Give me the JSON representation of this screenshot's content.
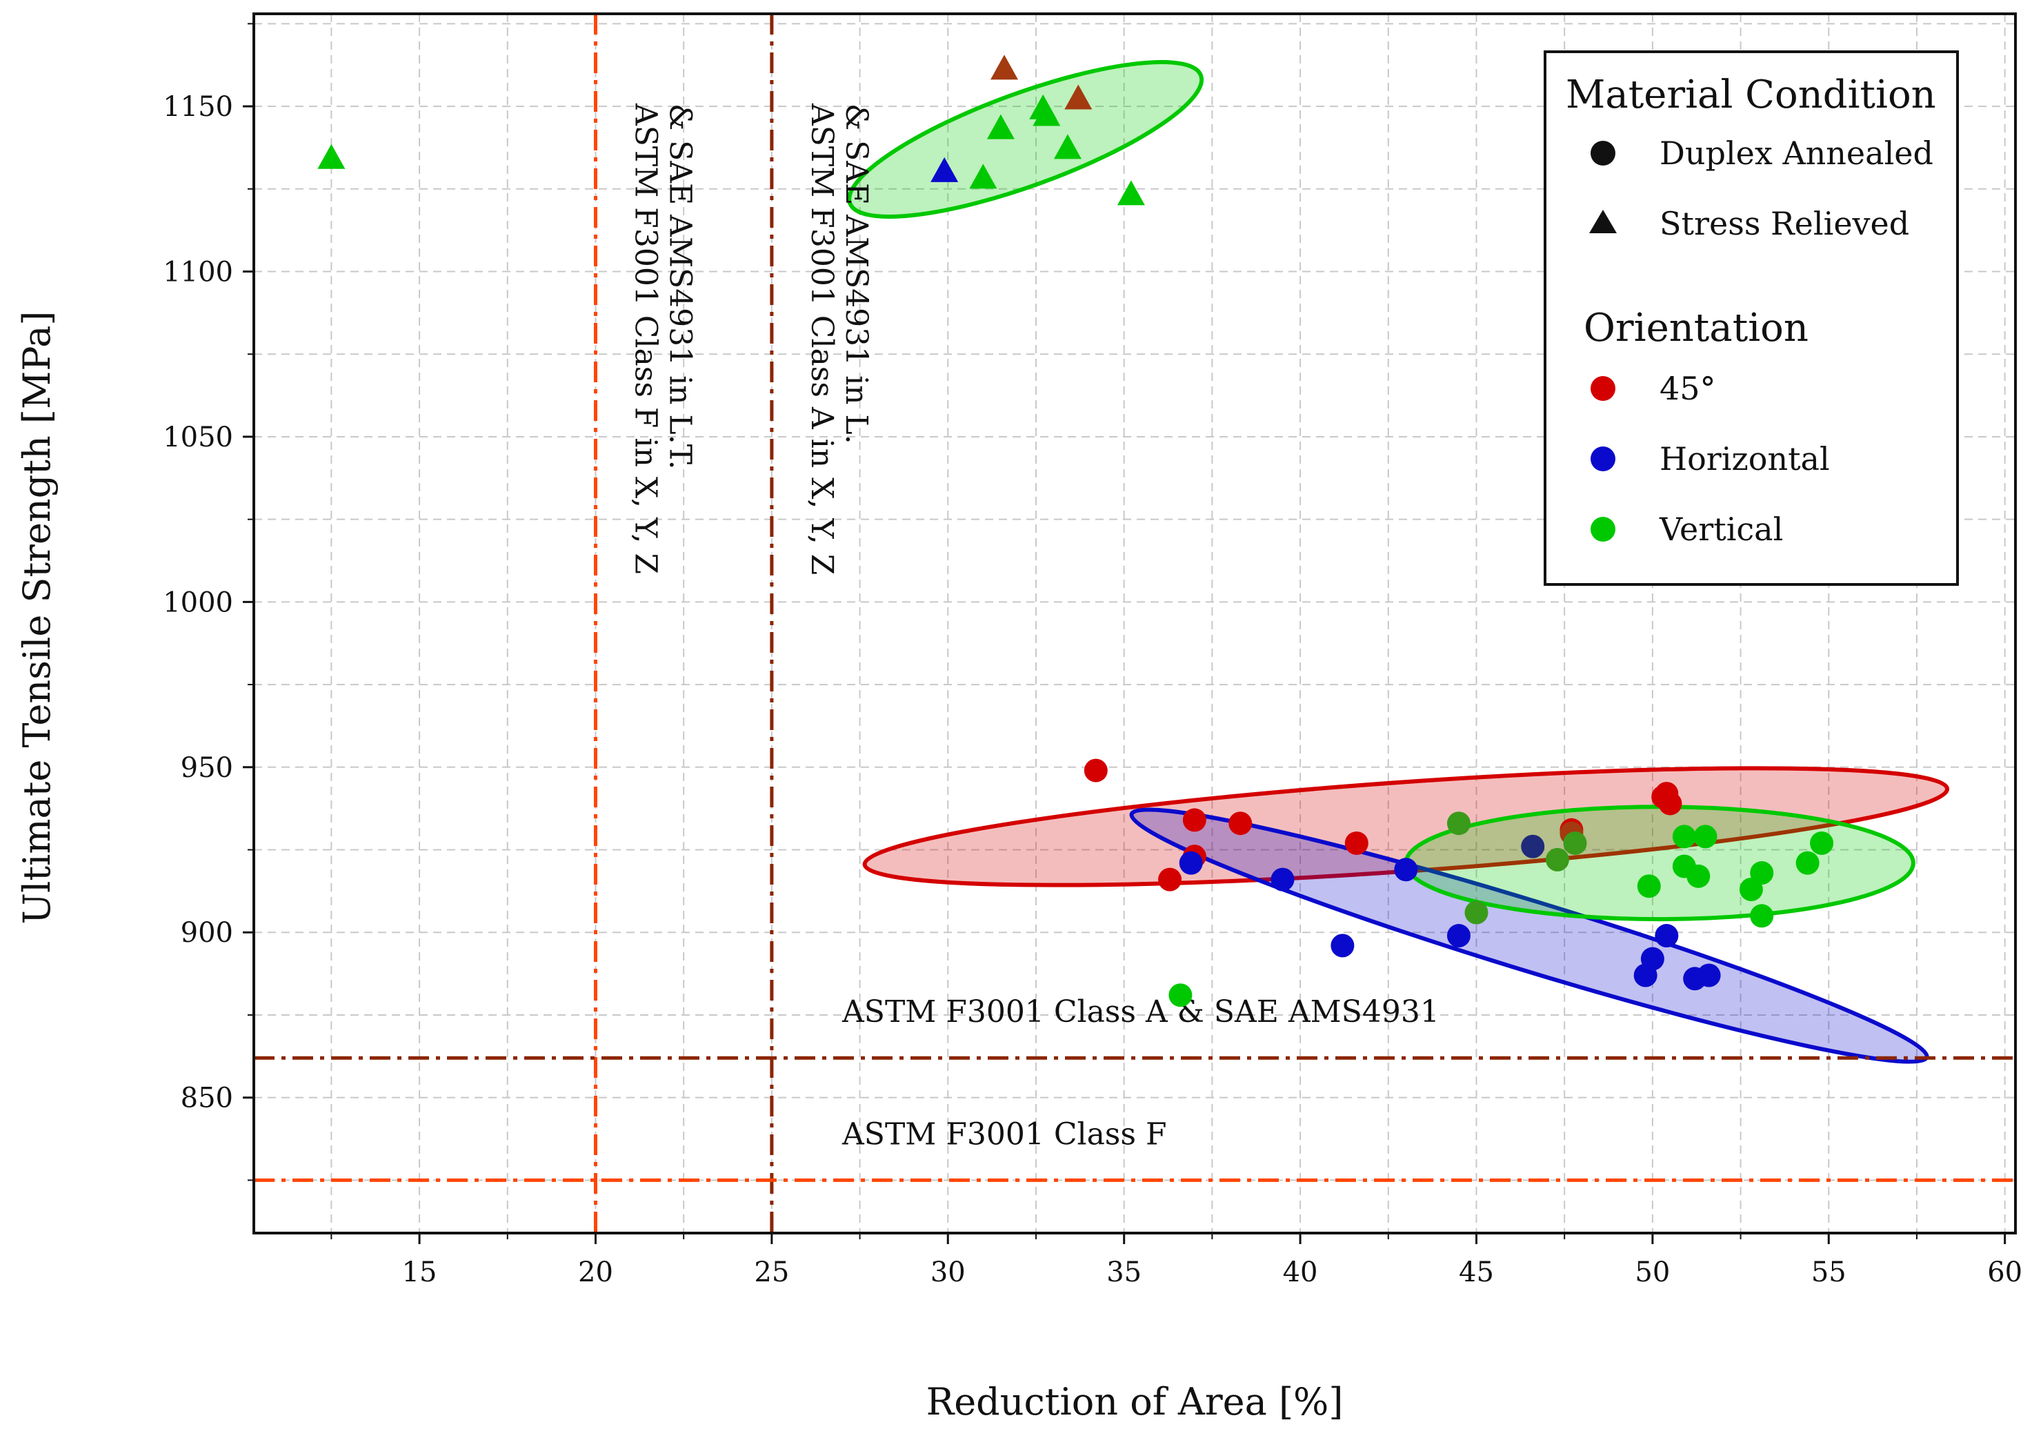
{
  "chart_data": {
    "type": "scatter",
    "xlabel": "Reduction of Area [%]",
    "ylabel": "Ultimate Tensile Strength [MPa]",
    "xlim": [
      10.3,
      60.3
    ],
    "ylim": [
      809,
      1178
    ],
    "x_ticks": [
      15,
      20,
      25,
      30,
      35,
      40,
      45,
      50,
      55,
      60
    ],
    "y_ticks": [
      850,
      900,
      950,
      1000,
      1050,
      1100,
      1150
    ],
    "x_tick_labels": [
      "15",
      "20",
      "25",
      "30",
      "35",
      "40",
      "45",
      "50",
      "55",
      "60"
    ],
    "y_tick_labels": [
      "850",
      "900",
      "950",
      "1000",
      "1050",
      "1100",
      "1150"
    ],
    "grid": true,
    "colors": {
      "45deg": "#d40000",
      "horizontal": "#0a0acc",
      "vertical": "#00c800",
      "red_brown": "#a33a10",
      "dark_green": "#3a9a1a",
      "navy": "#1f2a7a",
      "class_a_line": "#8b2500",
      "class_f_line": "#ff4500"
    },
    "reference_lines": {
      "vertical": [
        {
          "x": 20,
          "color_key": "class_f_line",
          "label": "ASTM F3001 Class F in X, Y, Z & SAE AMS4931 in L.T."
        },
        {
          "x": 25,
          "color_key": "class_a_line",
          "label": "ASTM F3001 Class A in X, Y, Z & SAE AMS4931 in L."
        }
      ],
      "horizontal": [
        {
          "y": 862,
          "color_key": "class_a_line",
          "label": "ASTM F3001 Class A & SAE AMS4931"
        },
        {
          "y": 825,
          "color_key": "class_f_line",
          "label": "ASTM F3001 Class F"
        }
      ]
    },
    "series": [
      {
        "name": "45° Duplex Annealed",
        "marker": "circle",
        "color_key": "45deg",
        "points": [
          [
            34.2,
            949
          ],
          [
            37.0,
            934
          ],
          [
            38.3,
            933
          ],
          [
            37.0,
            923
          ],
          [
            36.3,
            916
          ],
          [
            41.6,
            927
          ],
          [
            50.4,
            942
          ],
          [
            50.5,
            939
          ],
          [
            47.7,
            931
          ],
          [
            50.3,
            941
          ]
        ]
      },
      {
        "name": "45° overlap Duplex Annealed",
        "marker": "circle",
        "color_key": "red_brown",
        "points": [
          [
            47.7,
            930
          ]
        ]
      },
      {
        "name": "Horizontal Duplex Annealed",
        "marker": "circle",
        "color_key": "horizontal",
        "points": [
          [
            36.9,
            921
          ],
          [
            39.5,
            916
          ],
          [
            41.2,
            896
          ],
          [
            43.0,
            919
          ],
          [
            44.5,
            899
          ],
          [
            50.4,
            899
          ],
          [
            50.0,
            892
          ],
          [
            49.8,
            887
          ],
          [
            51.2,
            886
          ],
          [
            51.6,
            887
          ]
        ]
      },
      {
        "name": "Horizontal overlap Duplex Annealed",
        "marker": "circle",
        "color_key": "navy",
        "points": [
          [
            46.6,
            926
          ]
        ]
      },
      {
        "name": "Vertical Duplex Annealed",
        "marker": "circle",
        "color_key": "vertical",
        "points": [
          [
            36.6,
            881
          ],
          [
            49.9,
            914
          ],
          [
            50.9,
            929
          ],
          [
            51.3,
            917
          ],
          [
            51.5,
            929
          ],
          [
            50.9,
            920
          ],
          [
            52.8,
            913
          ],
          [
            53.1,
            918
          ],
          [
            53.1,
            905
          ],
          [
            54.4,
            921
          ],
          [
            54.8,
            927
          ]
        ]
      },
      {
        "name": "Vertical overlap Duplex Annealed",
        "marker": "circle",
        "color_key": "dark_green",
        "points": [
          [
            44.5,
            933
          ],
          [
            45.0,
            906
          ],
          [
            47.3,
            922
          ],
          [
            47.8,
            927
          ]
        ]
      },
      {
        "name": "Vertical Stress Relieved",
        "marker": "triangle",
        "color_key": "vertical",
        "points": [
          [
            12.5,
            1134
          ],
          [
            31.0,
            1128
          ],
          [
            31.5,
            1143
          ],
          [
            32.7,
            1149
          ],
          [
            32.8,
            1147
          ],
          [
            33.4,
            1137
          ],
          [
            35.2,
            1123
          ]
        ]
      },
      {
        "name": "45° Stress Relieved",
        "marker": "triangle",
        "color_key": "red_brown",
        "points": [
          [
            31.6,
            1161
          ],
          [
            33.7,
            1152
          ]
        ]
      },
      {
        "name": "Horizontal Stress Relieved",
        "marker": "triangle",
        "color_key": "horizontal",
        "points": [
          [
            29.9,
            1130
          ]
        ]
      }
    ],
    "ellipses": [
      {
        "group": "45°",
        "color_key": "45deg",
        "cx": 43.0,
        "cy": 932,
        "rx": 15.4,
        "ry": 13.5,
        "angle": -4
      },
      {
        "group": "Horizontal",
        "color_key": "horizontal",
        "cx": 46.5,
        "cy": 899,
        "rx": 11.8,
        "ry": 10.5,
        "angle": 17
      },
      {
        "group": "Vertical",
        "color_key": "vertical",
        "cx": 50.2,
        "cy": 921,
        "rx": 7.2,
        "ry": 17
      },
      {
        "group": "Stress Relieved",
        "color_key": "vertical",
        "cx": 32.2,
        "cy": 1140,
        "rx": 5.3,
        "ry": 14,
        "angle": -20
      }
    ]
  },
  "legend": {
    "material_title": "Material Condition",
    "material_items": [
      {
        "label": "Duplex Annealed",
        "marker": "circle"
      },
      {
        "label": "Stress Relieved",
        "marker": "triangle"
      }
    ],
    "orientation_title": "Orientation",
    "orientation_items": [
      {
        "label": "45°",
        "color_key": "45deg"
      },
      {
        "label": "Horizontal",
        "color_key": "horizontal"
      },
      {
        "label": "Vertical",
        "color_key": "vertical"
      }
    ]
  }
}
